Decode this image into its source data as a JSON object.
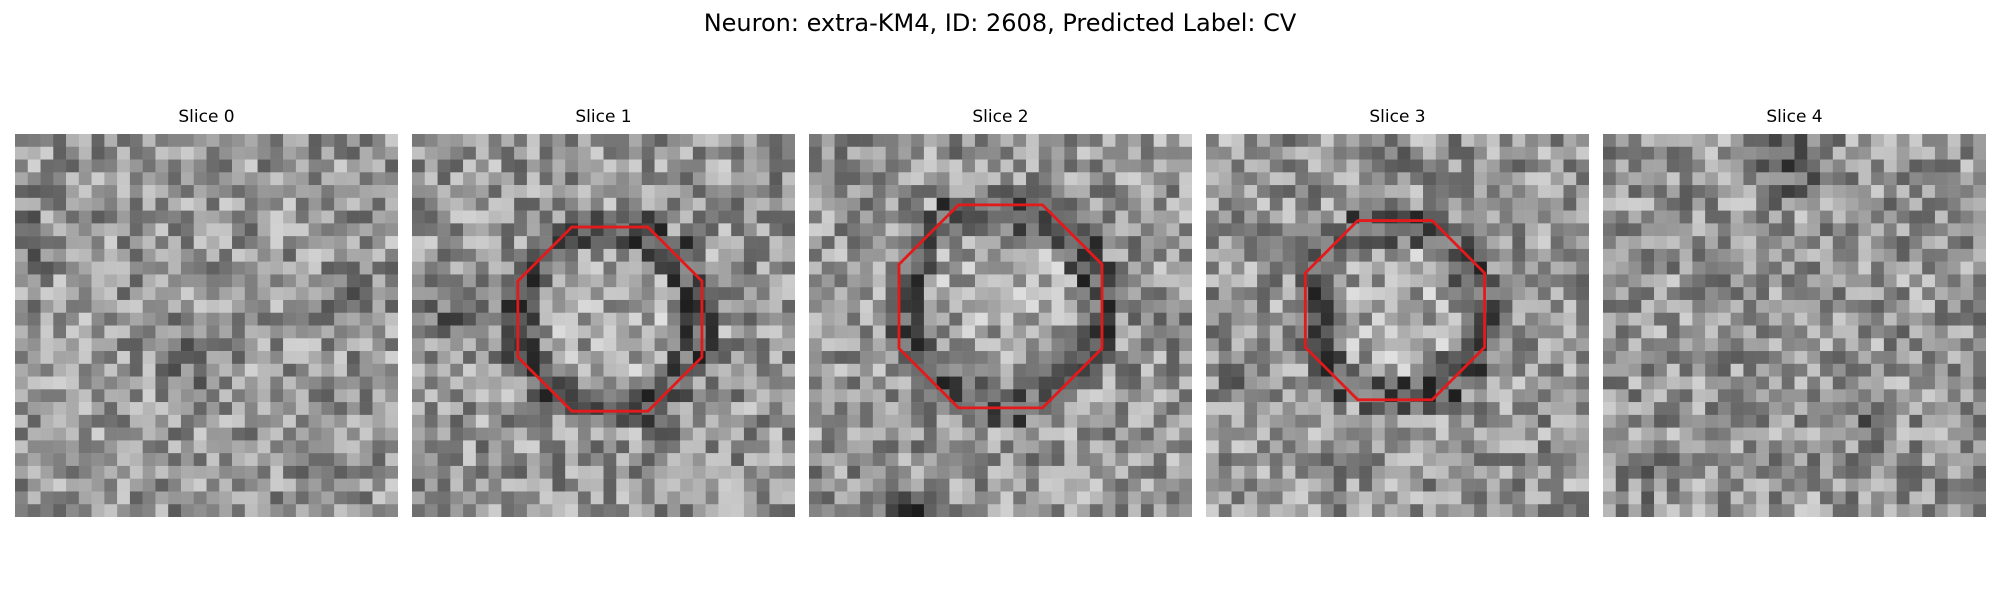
{
  "figure": {
    "title": "Neuron: extra-KM4, ID: 2608, Predicted Label: CV",
    "colormap": "grayscale",
    "contour_color": "#e31a1c",
    "panels": [
      {
        "title": "Slice 0",
        "seed": 11,
        "has_contour": false
      },
      {
        "title": "Slice 1",
        "seed": 23,
        "has_contour": true
      },
      {
        "title": "Slice 2",
        "seed": 37,
        "has_contour": true
      },
      {
        "title": "Slice 3",
        "seed": 41,
        "has_contour": true
      },
      {
        "title": "Slice 4",
        "seed": 59,
        "has_contour": false
      }
    ]
  }
}
